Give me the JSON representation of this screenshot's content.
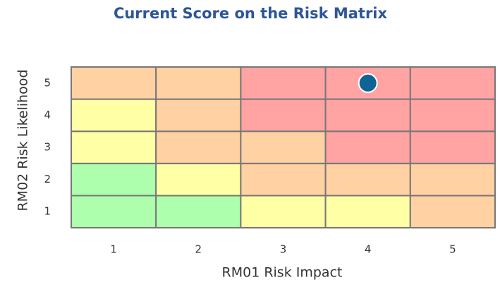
{
  "chart_data": {
    "type": "scatter",
    "title": "Current Score on the Risk Matrix",
    "xlabel": "RM01 Risk Impact",
    "ylabel": "RM02 Risk Likelihood",
    "xlim": [
      0.5,
      5.5
    ],
    "ylim": [
      0.5,
      5.5
    ],
    "xticks": [
      1,
      2,
      3,
      4,
      5
    ],
    "yticks": [
      1,
      2,
      3,
      4,
      5
    ],
    "cell_colors": [
      [
        "#adffad",
        "#adffad",
        "#ffffa6",
        "#ffffa6",
        "#ffd1a3"
      ],
      [
        "#adffad",
        "#ffffa6",
        "#ffd1a3",
        "#ffd1a3",
        "#ffd1a3"
      ],
      [
        "#ffffa6",
        "#ffd1a3",
        "#ffd1a3",
        "#ffa3a3",
        "#ffa3a3"
      ],
      [
        "#ffffa6",
        "#ffd1a3",
        "#ffa3a3",
        "#ffa3a3",
        "#ffa3a3"
      ],
      [
        "#ffd1a3",
        "#ffd1a3",
        "#ffa3a3",
        "#ffa3a3",
        "#ffa3a3"
      ]
    ],
    "series": [
      {
        "color": "#0f6496",
        "x": [
          4
        ],
        "values": [
          5
        ]
      }
    ]
  }
}
